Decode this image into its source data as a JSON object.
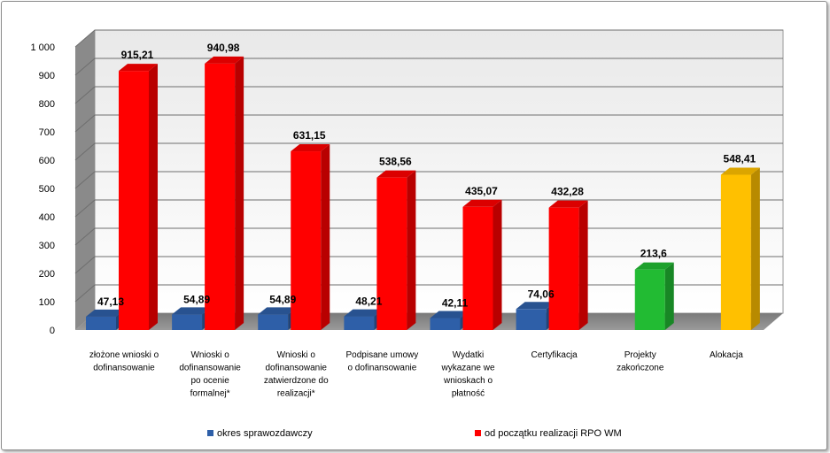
{
  "chart_data": {
    "type": "bar",
    "categories": [
      [
        "złożone wnioski o",
        "dofinansowanie"
      ],
      [
        "Wnioski o",
        "dofinansowanie",
        "po ocenie",
        "formalnej*"
      ],
      [
        "Wnioski o",
        "dofinansowanie",
        "zatwierdzone do",
        "realizacji*"
      ],
      [
        "Podpisane umowy",
        "o dofinansowanie"
      ],
      [
        "Wydatki",
        "wykazane we",
        "wnioskach o",
        "płatność"
      ],
      [
        "Certyfikacja"
      ],
      [
        "Projekty",
        "zakończone"
      ],
      [
        "Alokacja"
      ]
    ],
    "series": [
      {
        "name": "okres sprawozdawczy",
        "color": "#2e5fa8",
        "values": [
          47.13,
          54.89,
          54.89,
          48.21,
          42.11,
          74.06,
          null,
          null
        ],
        "labels": [
          "47,13",
          "54,89",
          "54,89",
          "48,21",
          "42,11",
          "74,06",
          "",
          ""
        ]
      },
      {
        "name": "od początku  realizacji  RPO WM",
        "color": "#ff0000",
        "values": [
          915.21,
          940.98,
          631.15,
          538.56,
          435.07,
          432.28,
          213.6,
          548.41
        ],
        "labels": [
          "915,21",
          "940,98",
          "631,15",
          "538,56",
          "435,07",
          "432,28",
          "213,6",
          "548,41"
        ],
        "point_colors": [
          null,
          null,
          null,
          null,
          null,
          null,
          "#22bb33",
          "#ffc000"
        ]
      }
    ],
    "ylim": [
      0,
      1000
    ],
    "yticks": [
      {
        "value": 0,
        "label": "0"
      },
      {
        "value": 100,
        "label": "100"
      },
      {
        "value": 200,
        "label": "200"
      },
      {
        "value": 300,
        "label": "300"
      },
      {
        "value": 400,
        "label": "400"
      },
      {
        "value": 500,
        "label": "500"
      },
      {
        "value": 600,
        "label": "600"
      },
      {
        "value": 700,
        "label": "700"
      },
      {
        "value": 800,
        "label": "800"
      },
      {
        "value": 900,
        "label": "900"
      },
      {
        "value": 1000,
        "label": "1 000"
      }
    ],
    "grid": true,
    "style": "3d",
    "legend_position": "bottom"
  }
}
